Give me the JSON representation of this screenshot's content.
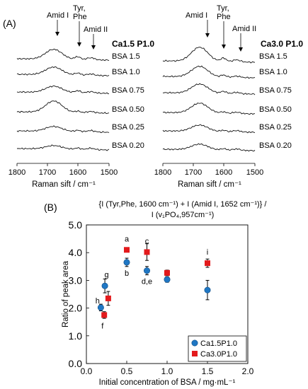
{
  "panels": {
    "a_label": "(A)",
    "b_label": "(B)"
  },
  "spectra": {
    "left": {
      "sample": "Ca1.5 P1.0",
      "traces": [
        "BSA 1.5",
        "BSA 1.0",
        "BSA 0.75",
        "BSA 0.50",
        "BSA 0.25",
        "BSA 0.20"
      ],
      "annotations": [
        "Amid I",
        "Tyr,",
        "Phe",
        "Amid II"
      ],
      "ticks": [
        "1800",
        "1700",
        "1600",
        "1500"
      ],
      "xlabel": "Raman sift / cm⁻¹"
    },
    "right": {
      "sample": "Ca3.0 P1.0",
      "traces": [
        "BSA 1.5",
        "BSA 1.0",
        "BSA 0.75",
        "BSA 0.50",
        "BSA 0.25",
        "BSA 0.20"
      ],
      "annotations": [
        "Amid I",
        "Tyr,",
        "Phe",
        "Amid II"
      ],
      "ticks": [
        "1800",
        "1700",
        "1600",
        "1500"
      ],
      "xlabel": "Raman sift / cm⁻¹"
    }
  },
  "chart_data": {
    "type": "scatter",
    "title_line1": "{I (Tyr,Phe, 1600 cm⁻¹) + I (Amid I, 1652 cm⁻¹)} /",
    "title_line2": "I (v₁PO₄,957cm⁻¹)",
    "xlabel": "Initial concentration of BSA  / mg·mL⁻¹",
    "ylabel": "Ratio of  peak area",
    "xlim": [
      0.0,
      2.0
    ],
    "ylim": [
      0.0,
      5.0
    ],
    "xticks": [
      "0.0",
      "0.5",
      "1.0",
      "1.5",
      "2.0"
    ],
    "yticks": [
      "0.0",
      "1.0",
      "2.0",
      "3.0",
      "4.0",
      "5.0"
    ],
    "legend_position": "bottom-right",
    "series": [
      {
        "name": "Ca1.5P1.0",
        "marker": "circle",
        "color": "#1f77c4",
        "x": [
          0.2,
          0.25,
          0.5,
          0.75,
          1.0,
          1.5
        ],
        "y": [
          2.02,
          2.8,
          3.65,
          3.35,
          3.03,
          2.65
        ],
        "err": [
          0.12,
          0.25,
          0.15,
          0.15,
          0.1,
          0.35
        ]
      },
      {
        "name": "Ca3.0P1.0",
        "marker": "square",
        "color": "#e31a1c",
        "x": [
          0.2,
          0.25,
          0.5,
          0.75,
          1.0,
          1.5
        ],
        "y": [
          1.75,
          2.35,
          4.1,
          4.02,
          3.27,
          3.62
        ],
        "err": [
          0.12,
          0.25,
          0.05,
          0.3,
          0.1,
          0.15
        ]
      }
    ],
    "annotations": [
      {
        "text": "a",
        "x": 0.5,
        "y": 4.1,
        "pos": "above"
      },
      {
        "text": "b",
        "x": 0.5,
        "y": 3.65,
        "pos": "below"
      },
      {
        "text": "c",
        "x": 0.75,
        "y": 4.02,
        "pos": "above"
      },
      {
        "text": "d,e",
        "x": 0.75,
        "y": 3.35,
        "pos": "below"
      },
      {
        "text": "g",
        "x": 0.25,
        "y": 2.8,
        "pos": "above"
      },
      {
        "text": "h",
        "x": 0.2,
        "y": 2.02,
        "pos": "above-left"
      },
      {
        "text": "f",
        "x": 0.2,
        "y": 1.75,
        "pos": "below"
      },
      {
        "text": "i",
        "x": 1.5,
        "y": 3.62,
        "pos": "above"
      }
    ]
  }
}
